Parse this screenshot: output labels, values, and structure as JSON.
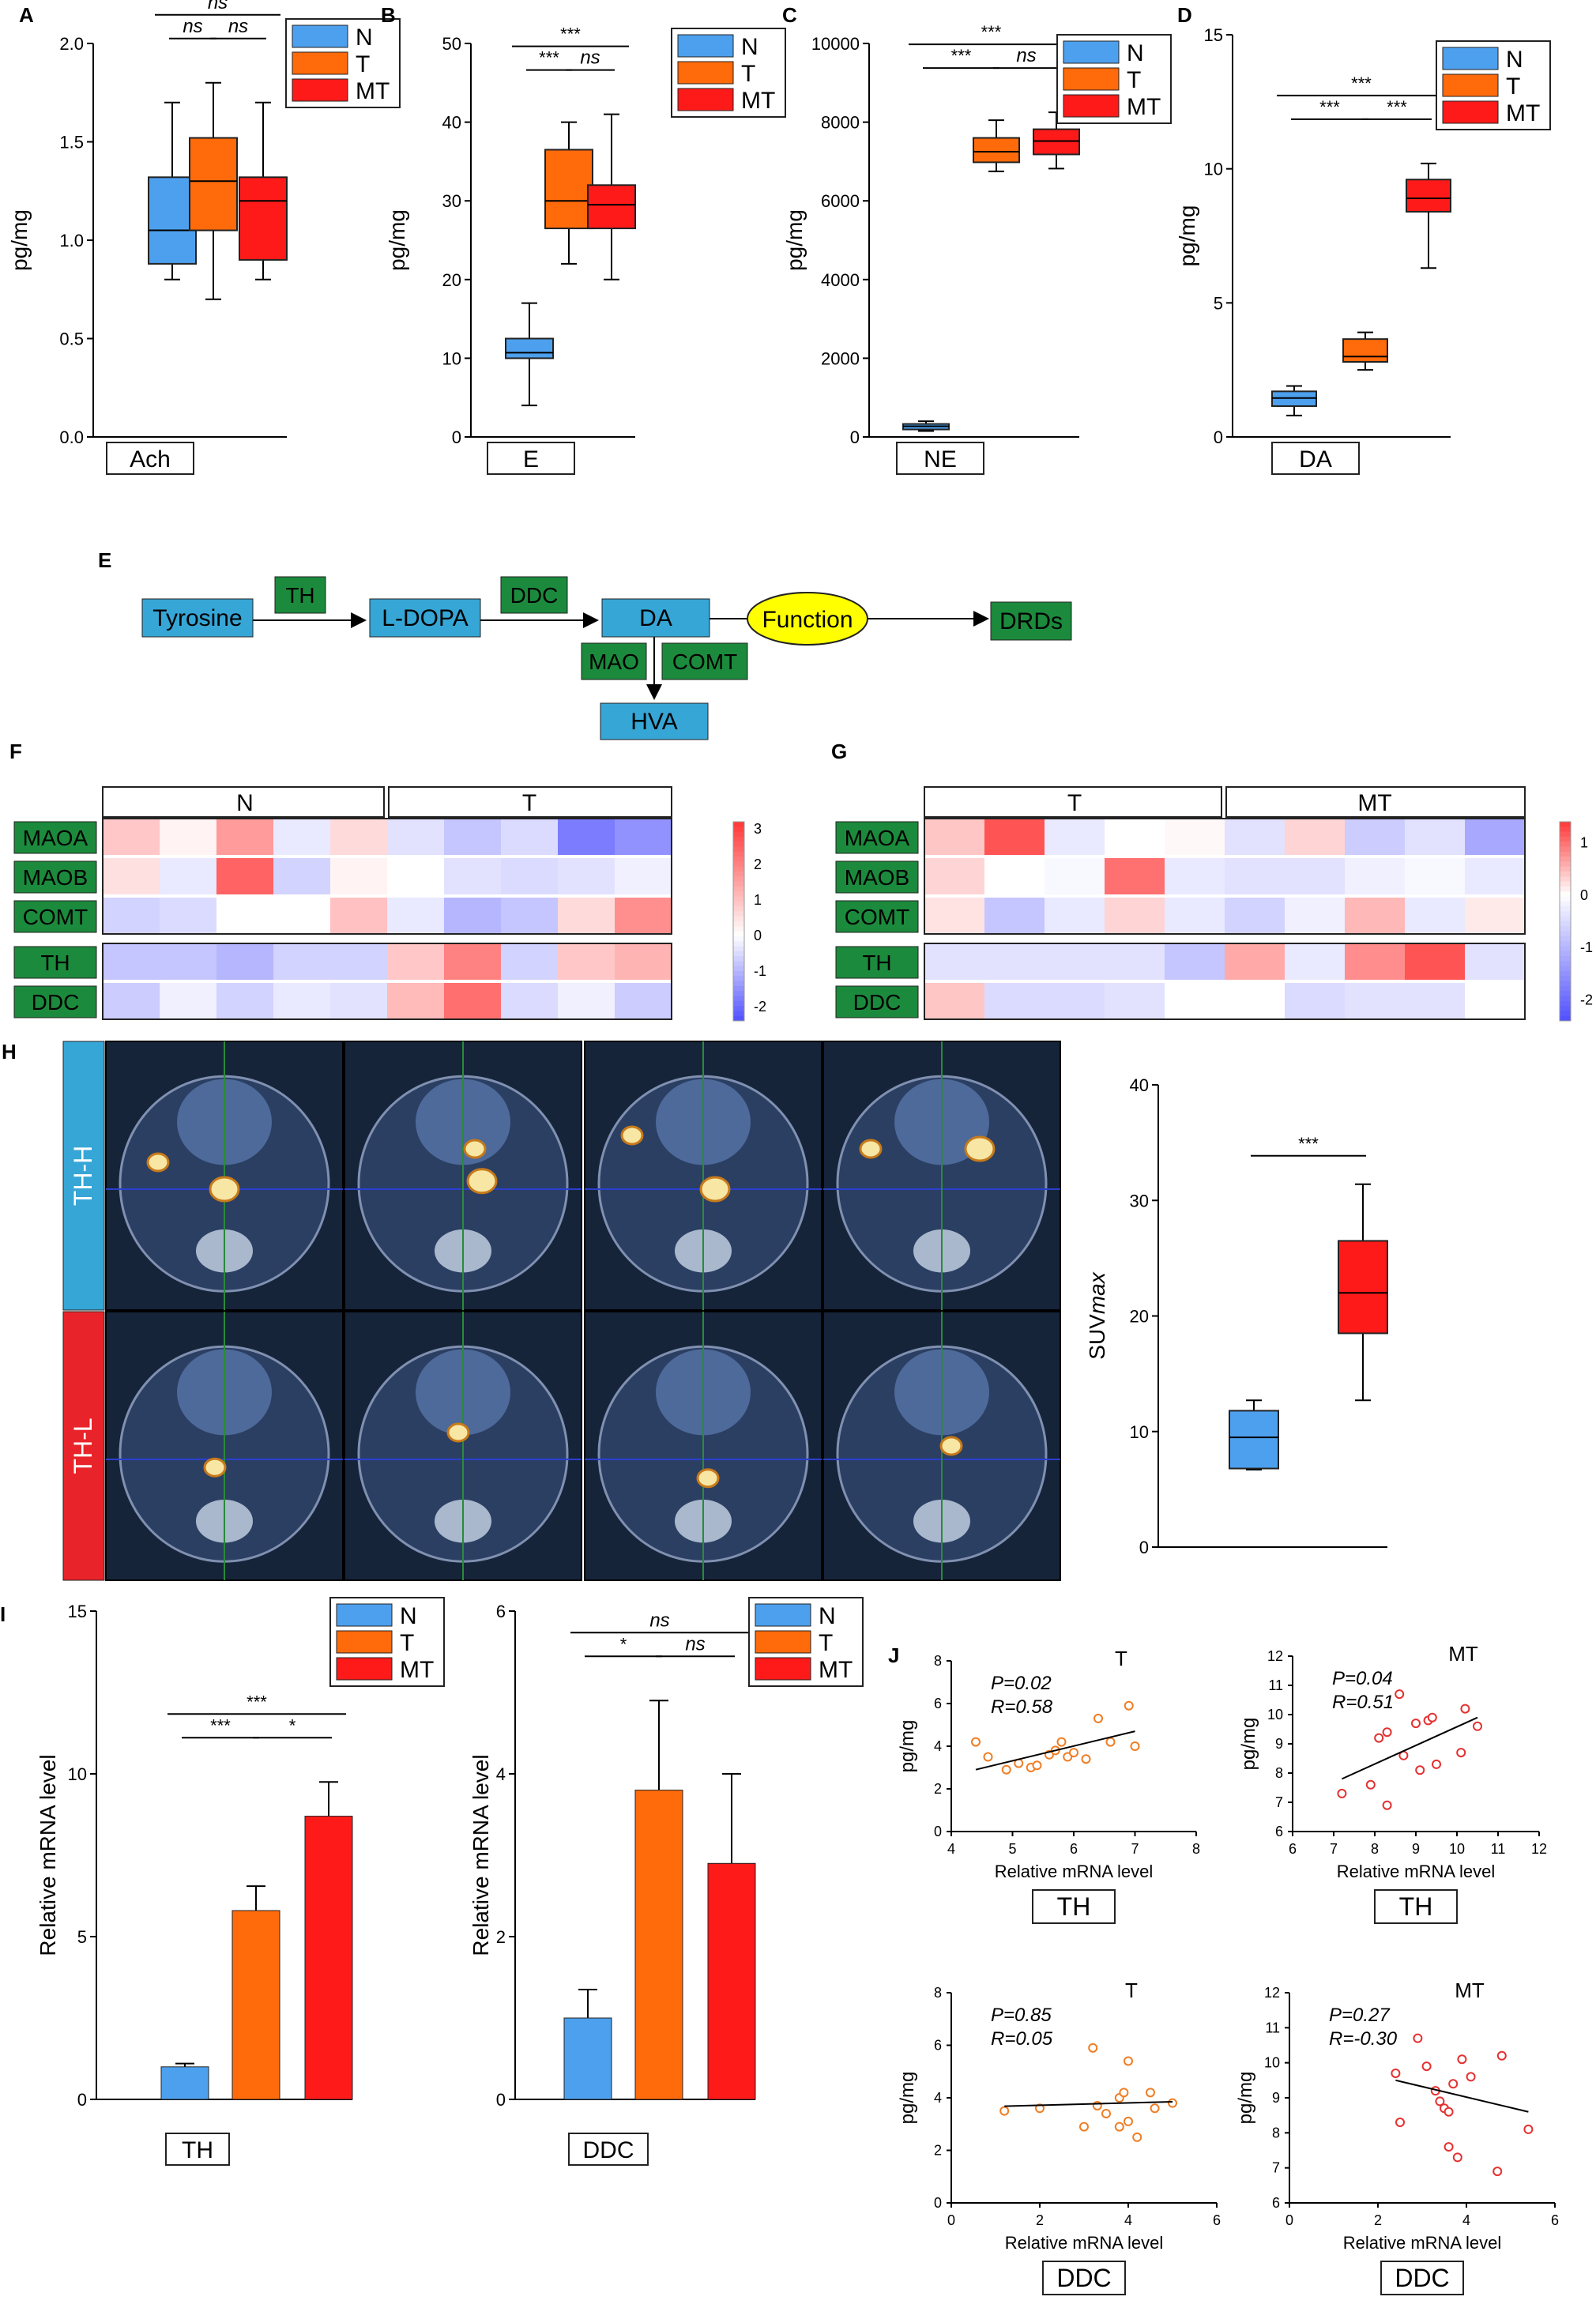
{
  "colors": {
    "N": "#4da0ee",
    "T": "#ff6a0a",
    "MT": "#ff1a1a",
    "green": "#1c8a3c",
    "blue_box": "#36a6d6",
    "yellow": "#ffff00",
    "th_h": "#36a6d6",
    "th_l": "#e8242a",
    "scatter_T": "#f07d23",
    "scatter_MT": "#e53030"
  },
  "panel_letters": [
    "A",
    "B",
    "C",
    "D",
    "E",
    "F",
    "G",
    "H",
    "I",
    "J"
  ],
  "legend_labels": [
    "N",
    "T",
    "MT"
  ],
  "sig": {
    "ns": "ns",
    "s3": "***",
    "s1": "*"
  },
  "chart_data": [
    {
      "id": "A",
      "type": "box",
      "ylabel": "pg/mg",
      "xlabel": "Ach",
      "ylim": [
        0,
        2.0
      ],
      "yticks": [
        "0.0",
        "0.5",
        "1.0",
        "1.5",
        "2.0"
      ],
      "yvals": [
        0,
        0.5,
        1.0,
        1.5,
        2.0
      ],
      "groups": [
        {
          "name": "N",
          "min": 0.8,
          "q1": 0.88,
          "median": 1.05,
          "q3": 1.32,
          "max": 1.7
        },
        {
          "name": "T",
          "min": 0.7,
          "q1": 1.05,
          "median": 1.3,
          "q3": 1.52,
          "max": 1.8
        },
        {
          "name": "MT",
          "min": 0.8,
          "q1": 0.9,
          "median": 1.2,
          "q3": 1.32,
          "max": 1.7
        }
      ],
      "brackets": [
        {
          "from": 0,
          "to": 1,
          "level": 0,
          "label": "ns"
        },
        {
          "from": 1,
          "to": 2,
          "level": 0,
          "label": "ns"
        },
        {
          "from": 0,
          "to": 2,
          "level": 1,
          "label": "ns"
        }
      ]
    },
    {
      "id": "B",
      "type": "box",
      "ylabel": "pg/mg",
      "xlabel": "E",
      "ylim": [
        0,
        50
      ],
      "yticks": [
        "0",
        "10",
        "20",
        "30",
        "40",
        "50"
      ],
      "yvals": [
        0,
        10,
        20,
        30,
        40,
        50
      ],
      "groups": [
        {
          "name": "N",
          "min": 4,
          "q1": 10,
          "median": 10.7,
          "q3": 12.5,
          "max": 17
        },
        {
          "name": "T",
          "min": 22,
          "q1": 26.5,
          "median": 30,
          "q3": 36.5,
          "max": 40
        },
        {
          "name": "MT",
          "min": 20,
          "q1": 26.5,
          "median": 29.5,
          "q3": 32,
          "max": 41
        }
      ],
      "brackets": [
        {
          "from": 0,
          "to": 1,
          "level": 0,
          "label": "***"
        },
        {
          "from": 1,
          "to": 2,
          "level": 0,
          "label": "ns"
        },
        {
          "from": 0,
          "to": 2,
          "level": 1,
          "label": "***"
        }
      ]
    },
    {
      "id": "C",
      "type": "box",
      "ylabel": "pg/mg",
      "xlabel": "NE",
      "ylim": [
        0,
        10000
      ],
      "yticks": [
        "0",
        "2000",
        "4000",
        "6000",
        "8000",
        "10000"
      ],
      "yvals": [
        0,
        2000,
        4000,
        6000,
        8000,
        10000
      ],
      "groups": [
        {
          "name": "N",
          "min": 150,
          "q1": 190,
          "median": 270,
          "q3": 330,
          "max": 400
        },
        {
          "name": "T",
          "min": 6750,
          "q1": 6980,
          "median": 7250,
          "q3": 7600,
          "max": 8050
        },
        {
          "name": "MT",
          "min": 6820,
          "q1": 7180,
          "median": 7520,
          "q3": 7820,
          "max": 8250
        }
      ],
      "brackets": [
        {
          "from": 0,
          "to": 1,
          "level": 0,
          "label": "***"
        },
        {
          "from": 1,
          "to": 2,
          "level": 0,
          "label": "ns"
        },
        {
          "from": 0,
          "to": 2,
          "level": 1,
          "label": "***"
        }
      ]
    },
    {
      "id": "D",
      "type": "box",
      "ylabel": "pg/mg",
      "xlabel": "DA",
      "ylim": [
        0,
        15
      ],
      "yticks": [
        "0",
        "5",
        "10",
        "15"
      ],
      "yvals": [
        0,
        5,
        10,
        15
      ],
      "groups": [
        {
          "name": "N",
          "min": 0.8,
          "q1": 1.15,
          "median": 1.45,
          "q3": 1.7,
          "max": 1.9
        },
        {
          "name": "T",
          "min": 2.5,
          "q1": 2.8,
          "median": 3.0,
          "q3": 3.65,
          "max": 3.9
        },
        {
          "name": "MT",
          "min": 6.3,
          "q1": 8.4,
          "median": 8.9,
          "q3": 9.6,
          "max": 10.2
        }
      ],
      "brackets": [
        {
          "from": 0,
          "to": 1,
          "level": 0,
          "label": "***"
        },
        {
          "from": 1,
          "to": 2,
          "level": 0,
          "label": "***"
        },
        {
          "from": 0,
          "to": 2,
          "level": 1,
          "label": "***"
        }
      ]
    },
    {
      "id": "F",
      "type": "heatmap",
      "col_groups": [
        "N",
        "T"
      ],
      "rows": [
        "MAOA",
        "MAOB",
        "COMT",
        "TH",
        "DDC"
      ],
      "scale_ticks": [
        "3",
        "2",
        "1",
        "0",
        "-1",
        "-2"
      ],
      "scale_vals": [
        3,
        2,
        1,
        0,
        -1,
        -2
      ],
      "scale_range": [
        -2.4,
        3.2
      ],
      "values": [
        [
          0.9,
          0.2,
          1.6,
          -0.3,
          0.6,
          -0.4,
          -0.8,
          -0.5,
          -1.8,
          -1.5
        ],
        [
          0.5,
          -0.3,
          2.5,
          -0.6,
          0.2,
          0.0,
          -0.4,
          -0.5,
          -0.4,
          -0.2
        ],
        [
          -0.6,
          -0.5,
          0.0,
          0.0,
          1.0,
          -0.3,
          -1.0,
          -0.8,
          0.6,
          1.8
        ],
        [
          -0.8,
          -0.8,
          -1.0,
          -0.6,
          -0.6,
          0.9,
          2.0,
          -0.6,
          0.9,
          1.2
        ],
        [
          -0.7,
          -0.2,
          -0.6,
          -0.3,
          -0.4,
          1.1,
          2.3,
          -0.5,
          -0.2,
          -0.7
        ]
      ]
    },
    {
      "id": "G",
      "type": "heatmap",
      "col_groups": [
        "T",
        "MT"
      ],
      "rows": [
        "MAOA",
        "MAOB",
        "COMT",
        "TH",
        "DDC"
      ],
      "scale_ticks": [
        "1",
        "0",
        "-1",
        "-2"
      ],
      "scale_vals": [
        1,
        0,
        -1,
        -2
      ],
      "scale_range": [
        -2.4,
        1.4
      ],
      "values": [
        [
          0.4,
          1.2,
          -0.3,
          0.0,
          0.05,
          -0.4,
          0.3,
          -0.7,
          -0.4,
          -1.2
        ],
        [
          0.3,
          0.0,
          -0.1,
          1.0,
          -0.3,
          -0.4,
          -0.4,
          -0.2,
          -0.1,
          -0.3
        ],
        [
          0.2,
          -0.8,
          -0.3,
          0.3,
          -0.3,
          -0.6,
          -0.2,
          0.5,
          -0.3,
          0.15
        ],
        [
          -0.4,
          -0.4,
          -0.4,
          -0.4,
          -0.8,
          0.6,
          -0.3,
          0.8,
          1.2,
          -0.4
        ],
        [
          0.4,
          -0.5,
          -0.5,
          -0.4,
          0.0,
          0.0,
          -0.5,
          -0.4,
          -0.4,
          0.0
        ]
      ]
    },
    {
      "id": "H",
      "type": "box",
      "ylabel": "SUVmax",
      "ylim": [
        0,
        40
      ],
      "yticks": [
        "0",
        "10",
        "20",
        "30",
        "40"
      ],
      "yvals": [
        0,
        10,
        20,
        30,
        40
      ],
      "groups": [
        {
          "name": "TH-L",
          "min": 6.7,
          "q1": 6.8,
          "median": 9.5,
          "q3": 11.8,
          "max": 12.7
        },
        {
          "name": "TH-H",
          "min": 12.7,
          "q1": 18.5,
          "median": 22,
          "q3": 26.5,
          "max": 31.4
        }
      ],
      "brackets": [
        {
          "from": 0,
          "to": 1,
          "level": 0,
          "label": "***"
        }
      ]
    },
    {
      "id": "I1",
      "type": "bar",
      "ylabel": "Relative mRNA level",
      "xlabel": "TH",
      "ylim": [
        0,
        15
      ],
      "yticks": [
        "0",
        "5",
        "10",
        "15"
      ],
      "yvals": [
        0,
        5,
        10,
        15
      ],
      "groups": [
        {
          "name": "N",
          "value": 1.0,
          "err": 0.1
        },
        {
          "name": "T",
          "value": 5.8,
          "err": 0.75
        },
        {
          "name": "MT",
          "value": 8.7,
          "err": 1.05
        }
      ],
      "brackets": [
        {
          "from": 0,
          "to": 1,
          "level": 0,
          "label": "***"
        },
        {
          "from": 1,
          "to": 2,
          "level": 0,
          "label": "*"
        },
        {
          "from": 0,
          "to": 2,
          "level": 1,
          "label": "***"
        }
      ]
    },
    {
      "id": "I2",
      "type": "bar",
      "ylabel": "Relative mRNA level",
      "xlabel": "DDC",
      "ylim": [
        0,
        6
      ],
      "yticks": [
        "0",
        "2",
        "4",
        "6"
      ],
      "yvals": [
        0,
        2,
        4,
        6
      ],
      "groups": [
        {
          "name": "N",
          "value": 1.0,
          "err": 0.35
        },
        {
          "name": "T",
          "value": 3.8,
          "err": 1.1
        },
        {
          "name": "MT",
          "value": 2.9,
          "err": 1.1
        }
      ],
      "brackets": [
        {
          "from": 0,
          "to": 1,
          "level": 0,
          "label": "*"
        },
        {
          "from": 1,
          "to": 2,
          "level": 0,
          "label": "ns"
        },
        {
          "from": 0,
          "to": 2,
          "level": 1,
          "label": "ns"
        }
      ]
    },
    {
      "id": "J1",
      "type": "scatter",
      "title": "T",
      "xlabel": "Relative mRNA level",
      "ylabel": "pg/mg",
      "gene": "TH",
      "stats": [
        "P=0.02",
        "R=0.58"
      ],
      "xlim": [
        4,
        8
      ],
      "ylim": [
        0,
        8
      ],
      "xticks": [
        4,
        5,
        6,
        7,
        8
      ],
      "yticks": [
        0,
        2,
        4,
        6,
        8
      ],
      "color": "T",
      "points": [
        [
          4.4,
          4.2
        ],
        [
          4.6,
          3.5
        ],
        [
          4.9,
          2.9
        ],
        [
          5.1,
          3.2
        ],
        [
          5.3,
          3.0
        ],
        [
          5.4,
          3.1
        ],
        [
          5.6,
          3.6
        ],
        [
          5.7,
          3.8
        ],
        [
          5.8,
          4.2
        ],
        [
          5.9,
          3.5
        ],
        [
          6.0,
          3.7
        ],
        [
          6.2,
          3.4
        ],
        [
          6.4,
          5.3
        ],
        [
          6.6,
          4.2
        ],
        [
          6.9,
          5.9
        ],
        [
          7.0,
          4.0
        ]
      ],
      "fit": [
        [
          4.4,
          2.9
        ],
        [
          7.0,
          4.7
        ]
      ]
    },
    {
      "id": "J2",
      "type": "scatter",
      "title": "MT",
      "xlabel": "Relative mRNA level",
      "ylabel": "pg/mg",
      "gene": "TH",
      "stats": [
        "P=0.04",
        "R=0.51"
      ],
      "xlim": [
        6,
        12
      ],
      "ylim": [
        6,
        12
      ],
      "xticks": [
        6,
        7,
        8,
        9,
        10,
        11,
        12
      ],
      "yticks": [
        6,
        7,
        8,
        9,
        10,
        11,
        12
      ],
      "color": "MT",
      "points": [
        [
          7.2,
          7.3
        ],
        [
          7.9,
          7.6
        ],
        [
          8.1,
          9.2
        ],
        [
          8.3,
          9.4
        ],
        [
          8.3,
          6.9
        ],
        [
          8.6,
          10.7
        ],
        [
          8.7,
          8.6
        ],
        [
          9.0,
          9.7
        ],
        [
          9.1,
          8.1
        ],
        [
          9.3,
          9.8
        ],
        [
          9.4,
          9.9
        ],
        [
          9.5,
          8.3
        ],
        [
          10.1,
          8.7
        ],
        [
          10.2,
          10.2
        ],
        [
          10.5,
          9.6
        ]
      ],
      "fit": [
        [
          7.2,
          7.8
        ],
        [
          10.5,
          9.9
        ]
      ]
    },
    {
      "id": "J3",
      "type": "scatter",
      "title": "T",
      "xlabel": "Relative mRNA level",
      "ylabel": "pg/mg",
      "gene": "DDC",
      "stats": [
        "P=0.85",
        "R=0.05"
      ],
      "xlim": [
        0,
        6
      ],
      "ylim": [
        0,
        8
      ],
      "xticks": [
        0,
        2,
        4,
        6
      ],
      "yticks": [
        0,
        2,
        4,
        6,
        8
      ],
      "color": "T",
      "points": [
        [
          1.2,
          3.5
        ],
        [
          2.0,
          3.6
        ],
        [
          3.0,
          2.9
        ],
        [
          3.2,
          5.9
        ],
        [
          3.3,
          3.7
        ],
        [
          3.5,
          3.4
        ],
        [
          3.8,
          2.9
        ],
        [
          3.8,
          4.0
        ],
        [
          3.9,
          4.2
        ],
        [
          4.0,
          5.4
        ],
        [
          4.0,
          3.1
        ],
        [
          4.2,
          2.5
        ],
        [
          4.5,
          4.2
        ],
        [
          4.6,
          3.6
        ],
        [
          5.0,
          3.8
        ]
      ],
      "fit": [
        [
          1.2,
          3.68
        ],
        [
          5.0,
          3.85
        ]
      ]
    },
    {
      "id": "J4",
      "type": "scatter",
      "title": "MT",
      "xlabel": "Relative mRNA level",
      "ylabel": "pg/mg",
      "gene": "DDC",
      "stats": [
        "P=0.27",
        "R=-0.30"
      ],
      "xlim": [
        0,
        6
      ],
      "ylim": [
        6,
        12
      ],
      "xticks": [
        0,
        2,
        4,
        6
      ],
      "yticks": [
        6,
        7,
        8,
        9,
        10,
        11,
        12
      ],
      "color": "MT",
      "points": [
        [
          2.4,
          9.7
        ],
        [
          2.5,
          8.3
        ],
        [
          2.9,
          10.7
        ],
        [
          3.1,
          9.9
        ],
        [
          3.3,
          9.2
        ],
        [
          3.4,
          8.9
        ],
        [
          3.5,
          8.7
        ],
        [
          3.6,
          8.6
        ],
        [
          3.6,
          7.6
        ],
        [
          3.7,
          9.4
        ],
        [
          3.8,
          7.3
        ],
        [
          3.9,
          10.1
        ],
        [
          4.1,
          9.6
        ],
        [
          4.7,
          6.9
        ],
        [
          4.8,
          10.2
        ],
        [
          5.4,
          8.1
        ]
      ],
      "fit": [
        [
          2.4,
          9.5
        ],
        [
          5.4,
          8.6
        ]
      ]
    }
  ],
  "pathway": {
    "nodes": [
      "Tyrosine",
      "L-DOPA",
      "DA",
      "Function",
      "DRDs",
      "HVA"
    ],
    "enzymes": [
      "TH",
      "DDC",
      "MAO",
      "COMT"
    ]
  },
  "pet": {
    "row_labels": [
      "TH-H",
      "TH-L"
    ]
  }
}
